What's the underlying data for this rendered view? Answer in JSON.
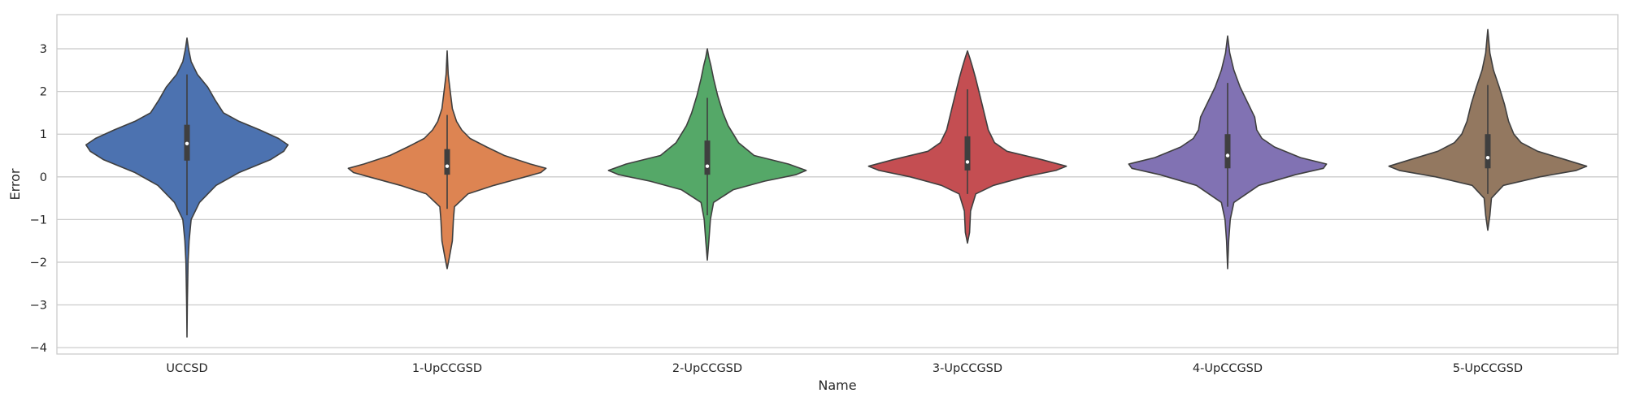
{
  "chart_data": {
    "type": "violin",
    "xlabel": "Name",
    "ylabel": "Error",
    "ylim": [
      -4.15,
      3.8
    ],
    "yticks": [
      -4,
      -3,
      -2,
      -1,
      0,
      1,
      2,
      3
    ],
    "grid": "horizontal",
    "categories": [
      "UCCSD",
      "1-UpCCGSD",
      "2-UpCCGSD",
      "3-UpCCGSD",
      "4-UpCCGSD",
      "5-UpCCGSD"
    ],
    "series": [
      {
        "color": "#4c72b0",
        "range": [
          -3.75,
          3.25
        ],
        "quartiles": [
          0.38,
          0.78,
          1.22
        ],
        "whiskers": [
          -0.9,
          2.4
        ],
        "density": [
          [
            -3.75,
            0.0
          ],
          [
            -3.0,
            0.003
          ],
          [
            -2.0,
            0.01
          ],
          [
            -1.5,
            0.02
          ],
          [
            -1.0,
            0.04
          ],
          [
            -0.6,
            0.12
          ],
          [
            -0.2,
            0.28
          ],
          [
            0.1,
            0.5
          ],
          [
            0.4,
            0.8
          ],
          [
            0.6,
            0.93
          ],
          [
            0.75,
            0.97
          ],
          [
            0.9,
            0.88
          ],
          [
            1.1,
            0.7
          ],
          [
            1.3,
            0.5
          ],
          [
            1.5,
            0.35
          ],
          [
            1.8,
            0.27
          ],
          [
            2.1,
            0.2
          ],
          [
            2.4,
            0.1
          ],
          [
            2.7,
            0.04
          ],
          [
            3.0,
            0.015
          ],
          [
            3.25,
            0.0
          ]
        ]
      },
      {
        "color": "#dd8452",
        "range": [
          -2.15,
          2.95
        ],
        "quartiles": [
          0.05,
          0.25,
          0.65
        ],
        "whiskers": [
          -0.75,
          1.45
        ],
        "density": [
          [
            -2.15,
            0.0
          ],
          [
            -1.9,
            0.02
          ],
          [
            -1.5,
            0.05
          ],
          [
            -1.0,
            0.06
          ],
          [
            -0.7,
            0.07
          ],
          [
            -0.4,
            0.2
          ],
          [
            -0.2,
            0.45
          ],
          [
            0.0,
            0.75
          ],
          [
            0.1,
            0.9
          ],
          [
            0.2,
            0.95
          ],
          [
            0.3,
            0.8
          ],
          [
            0.5,
            0.55
          ],
          [
            0.7,
            0.38
          ],
          [
            0.9,
            0.22
          ],
          [
            1.1,
            0.14
          ],
          [
            1.3,
            0.09
          ],
          [
            1.6,
            0.05
          ],
          [
            2.0,
            0.03
          ],
          [
            2.4,
            0.01
          ],
          [
            2.95,
            0.0
          ]
        ]
      },
      {
        "color": "#55a868",
        "range": [
          -1.95,
          3.0
        ],
        "quartiles": [
          0.05,
          0.25,
          0.85
        ],
        "whiskers": [
          -0.9,
          1.85
        ],
        "density": [
          [
            -1.95,
            0.0
          ],
          [
            -1.5,
            0.015
          ],
          [
            -1.0,
            0.03
          ],
          [
            -0.6,
            0.06
          ],
          [
            -0.3,
            0.25
          ],
          [
            -0.1,
            0.55
          ],
          [
            0.05,
            0.85
          ],
          [
            0.15,
            0.95
          ],
          [
            0.3,
            0.78
          ],
          [
            0.5,
            0.45
          ],
          [
            0.8,
            0.3
          ],
          [
            1.0,
            0.25
          ],
          [
            1.2,
            0.2
          ],
          [
            1.5,
            0.15
          ],
          [
            1.9,
            0.1
          ],
          [
            2.3,
            0.06
          ],
          [
            2.6,
            0.035
          ],
          [
            2.8,
            0.015
          ],
          [
            3.0,
            0.0
          ]
        ]
      },
      {
        "color": "#c44e52",
        "range": [
          -1.55,
          2.95
        ],
        "quartiles": [
          0.15,
          0.35,
          0.95
        ],
        "whiskers": [
          -0.4,
          2.05
        ],
        "density": [
          [
            -1.55,
            0.0
          ],
          [
            -1.3,
            0.02
          ],
          [
            -0.8,
            0.03
          ],
          [
            -0.4,
            0.08
          ],
          [
            -0.2,
            0.25
          ],
          [
            0.0,
            0.55
          ],
          [
            0.15,
            0.85
          ],
          [
            0.25,
            0.95
          ],
          [
            0.4,
            0.72
          ],
          [
            0.6,
            0.38
          ],
          [
            0.8,
            0.26
          ],
          [
            1.1,
            0.2
          ],
          [
            1.5,
            0.16
          ],
          [
            1.9,
            0.12
          ],
          [
            2.3,
            0.08
          ],
          [
            2.6,
            0.045
          ],
          [
            2.8,
            0.02
          ],
          [
            2.95,
            0.0
          ]
        ]
      },
      {
        "color": "#8172b3",
        "range": [
          -2.15,
          3.3
        ],
        "quartiles": [
          0.2,
          0.5,
          1.0
        ],
        "whiskers": [
          -0.7,
          2.2
        ],
        "density": [
          [
            -2.15,
            0.0
          ],
          [
            -1.5,
            0.01
          ],
          [
            -1.0,
            0.025
          ],
          [
            -0.6,
            0.06
          ],
          [
            -0.2,
            0.3
          ],
          [
            0.05,
            0.65
          ],
          [
            0.2,
            0.92
          ],
          [
            0.3,
            0.95
          ],
          [
            0.45,
            0.7
          ],
          [
            0.7,
            0.45
          ],
          [
            0.9,
            0.33
          ],
          [
            1.1,
            0.28
          ],
          [
            1.4,
            0.26
          ],
          [
            1.7,
            0.2
          ],
          [
            2.1,
            0.12
          ],
          [
            2.5,
            0.06
          ],
          [
            2.9,
            0.02
          ],
          [
            3.3,
            0.0
          ]
        ]
      },
      {
        "color": "#937860",
        "range": [
          -1.25,
          3.45
        ],
        "quartiles": [
          0.2,
          0.45,
          1.0
        ],
        "whiskers": [
          -0.4,
          2.15
        ],
        "density": [
          [
            -1.25,
            0.0
          ],
          [
            -0.9,
            0.02
          ],
          [
            -0.5,
            0.035
          ],
          [
            -0.2,
            0.15
          ],
          [
            0.0,
            0.5
          ],
          [
            0.15,
            0.85
          ],
          [
            0.25,
            0.95
          ],
          [
            0.4,
            0.75
          ],
          [
            0.6,
            0.48
          ],
          [
            0.8,
            0.32
          ],
          [
            1.0,
            0.25
          ],
          [
            1.3,
            0.2
          ],
          [
            1.7,
            0.16
          ],
          [
            2.1,
            0.11
          ],
          [
            2.5,
            0.055
          ],
          [
            2.9,
            0.02
          ],
          [
            3.45,
            0.0
          ]
        ]
      }
    ]
  }
}
